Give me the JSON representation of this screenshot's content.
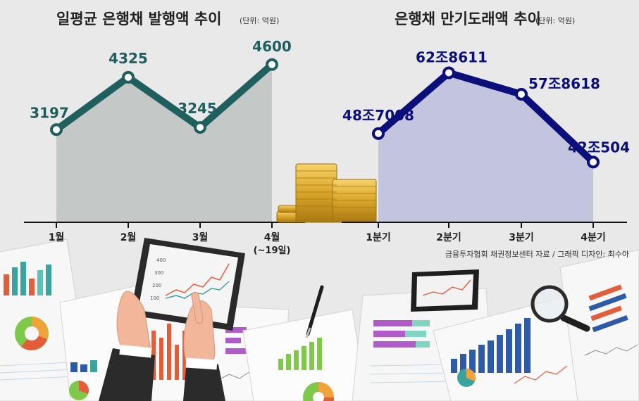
{
  "colors": {
    "left_line": "#1f5f5e",
    "left_area": "#c4c9c8",
    "right_line": "#0b0f7a",
    "right_area": "#c3c5de",
    "background": "#e9e9e9"
  },
  "chart_data": [
    {
      "type": "line",
      "title": "일평균 은행채 발행액 추이",
      "unit": "(단위: 억원)",
      "categories": [
        "1월",
        "2월",
        "3월",
        "4월"
      ],
      "category_notes": [
        "",
        "",
        "",
        "(~19일)"
      ],
      "series": [
        {
          "values": [
            3197,
            4325,
            3245,
            4600
          ],
          "labels": [
            "3197",
            "4325",
            "3245",
            "4600"
          ]
        }
      ],
      "ylim": [
        1200,
        4900
      ],
      "grid": false,
      "legend": "none"
    },
    {
      "type": "line",
      "title": "은행채 만기도래액 추이",
      "unit": "(단위: 억원)",
      "categories": [
        "1분기",
        "2분기",
        "3분기",
        "4분기"
      ],
      "series": [
        {
          "values": [
            487008,
            628611,
            578618,
            420504
          ],
          "labels": [
            "48조7008",
            "62조8611",
            "57조8618",
            "42조504"
          ]
        }
      ],
      "ylim": [
        280000,
        700000
      ],
      "grid": false,
      "legend": "none"
    }
  ],
  "source": "금융투자협회 채권정보센터 자료  / 그래픽 디자인: 최수아",
  "illustration": {
    "tablet_ticks": [
      "400",
      "300",
      "200",
      "100"
    ]
  }
}
